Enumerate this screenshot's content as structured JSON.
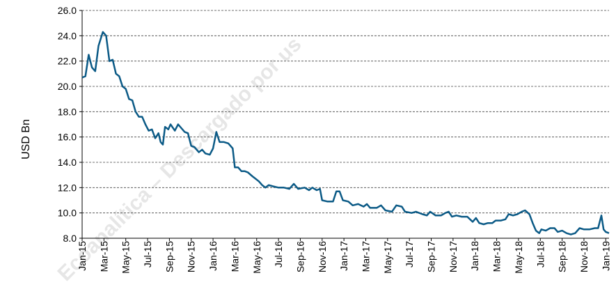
{
  "chart_data": {
    "type": "line",
    "y_label": "USD Bn",
    "watermark": "Ecoanalítica – Descargado por us",
    "xlim": [
      0,
      48.3
    ],
    "xticks": [
      {
        "value": 0,
        "label": "Jan-15"
      },
      {
        "value": 2,
        "label": "Mar-15"
      },
      {
        "value": 4,
        "label": "May-15"
      },
      {
        "value": 6,
        "label": "Jul-15"
      },
      {
        "value": 8,
        "label": "Sep-15"
      },
      {
        "value": 10,
        "label": "Nov-15"
      },
      {
        "value": 12,
        "label": "Jan-16"
      },
      {
        "value": 14,
        "label": "Mar-16"
      },
      {
        "value": 16,
        "label": "May-16"
      },
      {
        "value": 18,
        "label": "Jul-16"
      },
      {
        "value": 20,
        "label": "Sep-16"
      },
      {
        "value": 22,
        "label": "Nov-16"
      },
      {
        "value": 24,
        "label": "Jan-17"
      },
      {
        "value": 26,
        "label": "Mar-17"
      },
      {
        "value": 28,
        "label": "May-17"
      },
      {
        "value": 30,
        "label": "Jul-17"
      },
      {
        "value": 32,
        "label": "Sep-17"
      },
      {
        "value": 34,
        "label": "Nov-17"
      },
      {
        "value": 36,
        "label": "Jan-18"
      },
      {
        "value": 38,
        "label": "Mar-18"
      },
      {
        "value": 40,
        "label": "May-18"
      },
      {
        "value": 42,
        "label": "Jul-18"
      },
      {
        "value": 44,
        "label": "Sep-18"
      },
      {
        "value": 46,
        "label": "Nov-18"
      },
      {
        "value": 48,
        "label": "Jan-19"
      }
    ],
    "ylim": [
      8,
      26
    ],
    "yticks": [
      {
        "value": 8,
        "label": "8.0"
      },
      {
        "value": 10,
        "label": "10.0"
      },
      {
        "value": 12,
        "label": "12.0"
      },
      {
        "value": 14,
        "label": "14.0"
      },
      {
        "value": 16,
        "label": "16.0"
      },
      {
        "value": 18,
        "label": "18.0"
      },
      {
        "value": 20,
        "label": "20.0"
      },
      {
        "value": 22,
        "label": "22.0"
      },
      {
        "value": 24,
        "label": "24.0"
      },
      {
        "value": 26,
        "label": "26.0"
      }
    ],
    "grid": true,
    "color": "#0b5a86",
    "x": [
      0,
      0.3,
      0.6,
      0.9,
      1.2,
      1.5,
      1.9,
      2.2,
      2.5,
      2.8,
      3.1,
      3.4,
      3.7,
      4.0,
      4.3,
      4.6,
      4.9,
      5.2,
      5.5,
      5.8,
      6.1,
      6.4,
      6.7,
      7.0,
      7.2,
      7.4,
      7.6,
      7.9,
      8.1,
      8.5,
      8.8,
      9.1,
      9.4,
      9.7,
      10.0,
      10.3,
      10.7,
      11.0,
      11.3,
      11.7,
      12.0,
      12.3,
      12.6,
      13.0,
      13.4,
      13.8,
      14.0,
      14.3,
      14.6,
      14.9,
      15.2,
      15.6,
      15.9,
      16.2,
      16.5,
      16.8,
      17.1,
      17.5,
      18,
      18.5,
      19,
      19.4,
      19.8,
      20.4,
      20.8,
      21.1,
      21.5,
      21.8,
      22.0,
      22.5,
      23.0,
      23.3,
      23.6,
      23.9,
      24.4,
      24.8,
      25.3,
      25.8,
      26.1,
      26.4,
      27,
      27.4,
      27.8,
      28.4,
      28.8,
      29.3,
      29.6,
      30.2,
      30.6,
      31.2,
      31.6,
      31.9,
      32.4,
      32.9,
      33.3,
      33.6,
      33.9,
      34.3,
      34.8,
      35.3,
      35.8,
      36.1,
      36.4,
      36.8,
      37.2,
      37.6,
      37.9,
      38.4,
      38.8,
      39.1,
      39.5,
      39.9,
      40.3,
      40.6,
      41.0,
      41.3,
      41.6,
      41.9,
      42.1,
      42.5,
      42.9,
      43.3,
      43.6,
      44.0,
      44.4,
      44.8,
      45.2,
      45.6,
      46.0,
      46.5,
      47.0,
      47.3,
      47.6,
      47.8,
      48.0,
      48.3
    ],
    "values": [
      20.7,
      20.8,
      22.5,
      21.5,
      21.2,
      23.2,
      24.3,
      24.0,
      22.0,
      22.1,
      21.0,
      20.8,
      20.0,
      19.8,
      19.0,
      18.9,
      18.0,
      17.6,
      17.6,
      17.0,
      16.5,
      16.6,
      15.9,
      16.3,
      15.6,
      15.4,
      16.8,
      16.6,
      17.0,
      16.5,
      17.0,
      16.7,
      16.4,
      16.3,
      15.3,
      15.2,
      14.8,
      15.0,
      14.7,
      14.6,
      15.1,
      16.4,
      15.6,
      15.6,
      15.5,
      15.1,
      13.6,
      13.6,
      13.3,
      13.3,
      13.2,
      12.9,
      12.7,
      12.5,
      12.2,
      12.0,
      12.2,
      12.1,
      12.0,
      12.0,
      11.9,
      12.3,
      11.9,
      12.0,
      11.8,
      12.0,
      11.8,
      11.9,
      11.0,
      10.9,
      10.9,
      11.7,
      11.7,
      11.0,
      10.9,
      10.6,
      10.7,
      10.5,
      10.7,
      10.4,
      10.4,
      10.6,
      10.2,
      10.1,
      10.6,
      10.5,
      10.1,
      10.0,
      10.1,
      9.9,
      9.8,
      10.1,
      9.8,
      9.8,
      10.0,
      10.1,
      9.7,
      9.8,
      9.7,
      9.7,
      9.3,
      9.6,
      9.2,
      9.1,
      9.2,
      9.2,
      9.4,
      9.4,
      9.5,
      9.9,
      9.8,
      9.9,
      10.1,
      10.2,
      9.9,
      9.2,
      8.6,
      8.4,
      8.7,
      8.6,
      8.8,
      8.8,
      8.5,
      8.6,
      8.4,
      8.3,
      8.4,
      8.8,
      8.7,
      8.7,
      8.8,
      8.8,
      9.8,
      8.7,
      8.5,
      8.4
    ]
  }
}
